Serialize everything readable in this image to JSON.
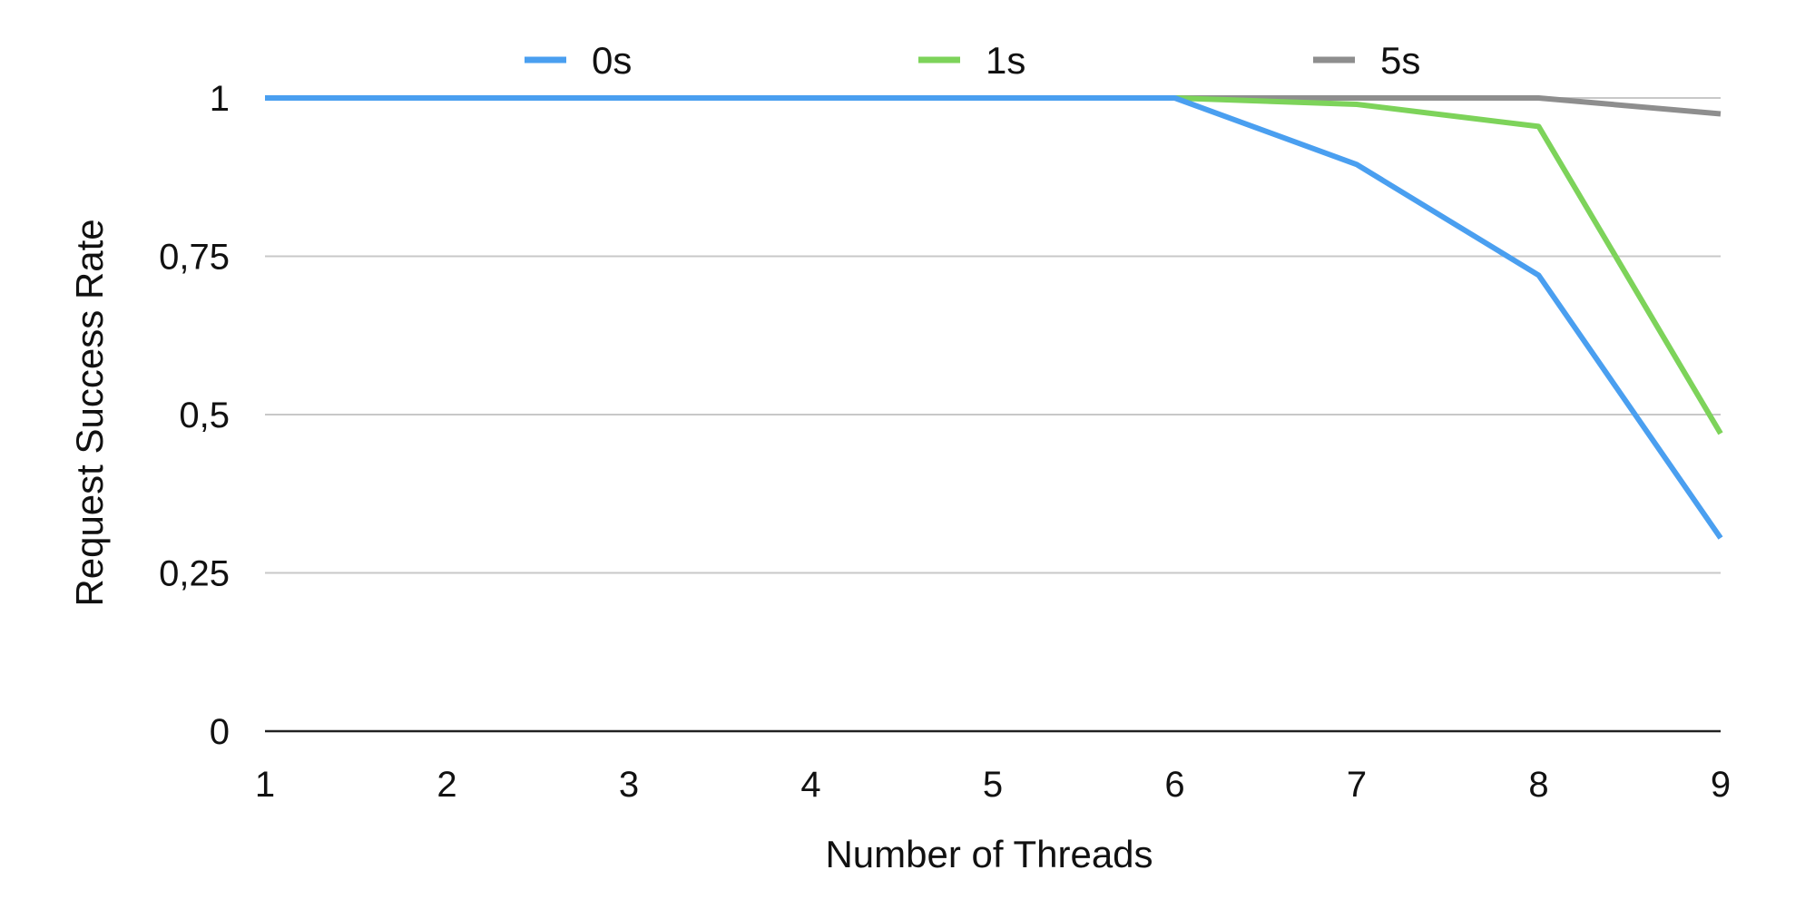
{
  "chart_data": {
    "type": "line",
    "x": [
      1,
      2,
      3,
      4,
      5,
      6,
      7,
      8,
      9
    ],
    "xlabel": "Number of Threads",
    "ylabel": "Request Success Rate",
    "ylim": [
      0,
      1
    ],
    "y_ticks": [
      0,
      0.25,
      0.5,
      0.75,
      1
    ],
    "y_tick_labels": [
      "0",
      "0,25",
      "0,5",
      "0,75",
      "1"
    ],
    "x_tick_labels": [
      "1",
      "2",
      "3",
      "4",
      "5",
      "6",
      "7",
      "8",
      "9"
    ],
    "grid": true,
    "legend_position": "top",
    "series": [
      {
        "name": "0s",
        "color": "#4a9ff0",
        "values": [
          1,
          1,
          1,
          1,
          1,
          1,
          0.895,
          0.72,
          0.305
        ]
      },
      {
        "name": "1s",
        "color": "#7dd35a",
        "values": [
          1,
          1,
          1,
          1,
          1,
          1,
          0.99,
          0.955,
          0.47
        ]
      },
      {
        "name": "5s",
        "color": "#8e8e8e",
        "values": [
          1,
          1,
          1,
          1,
          1,
          1,
          1,
          1,
          0.975
        ]
      }
    ]
  }
}
